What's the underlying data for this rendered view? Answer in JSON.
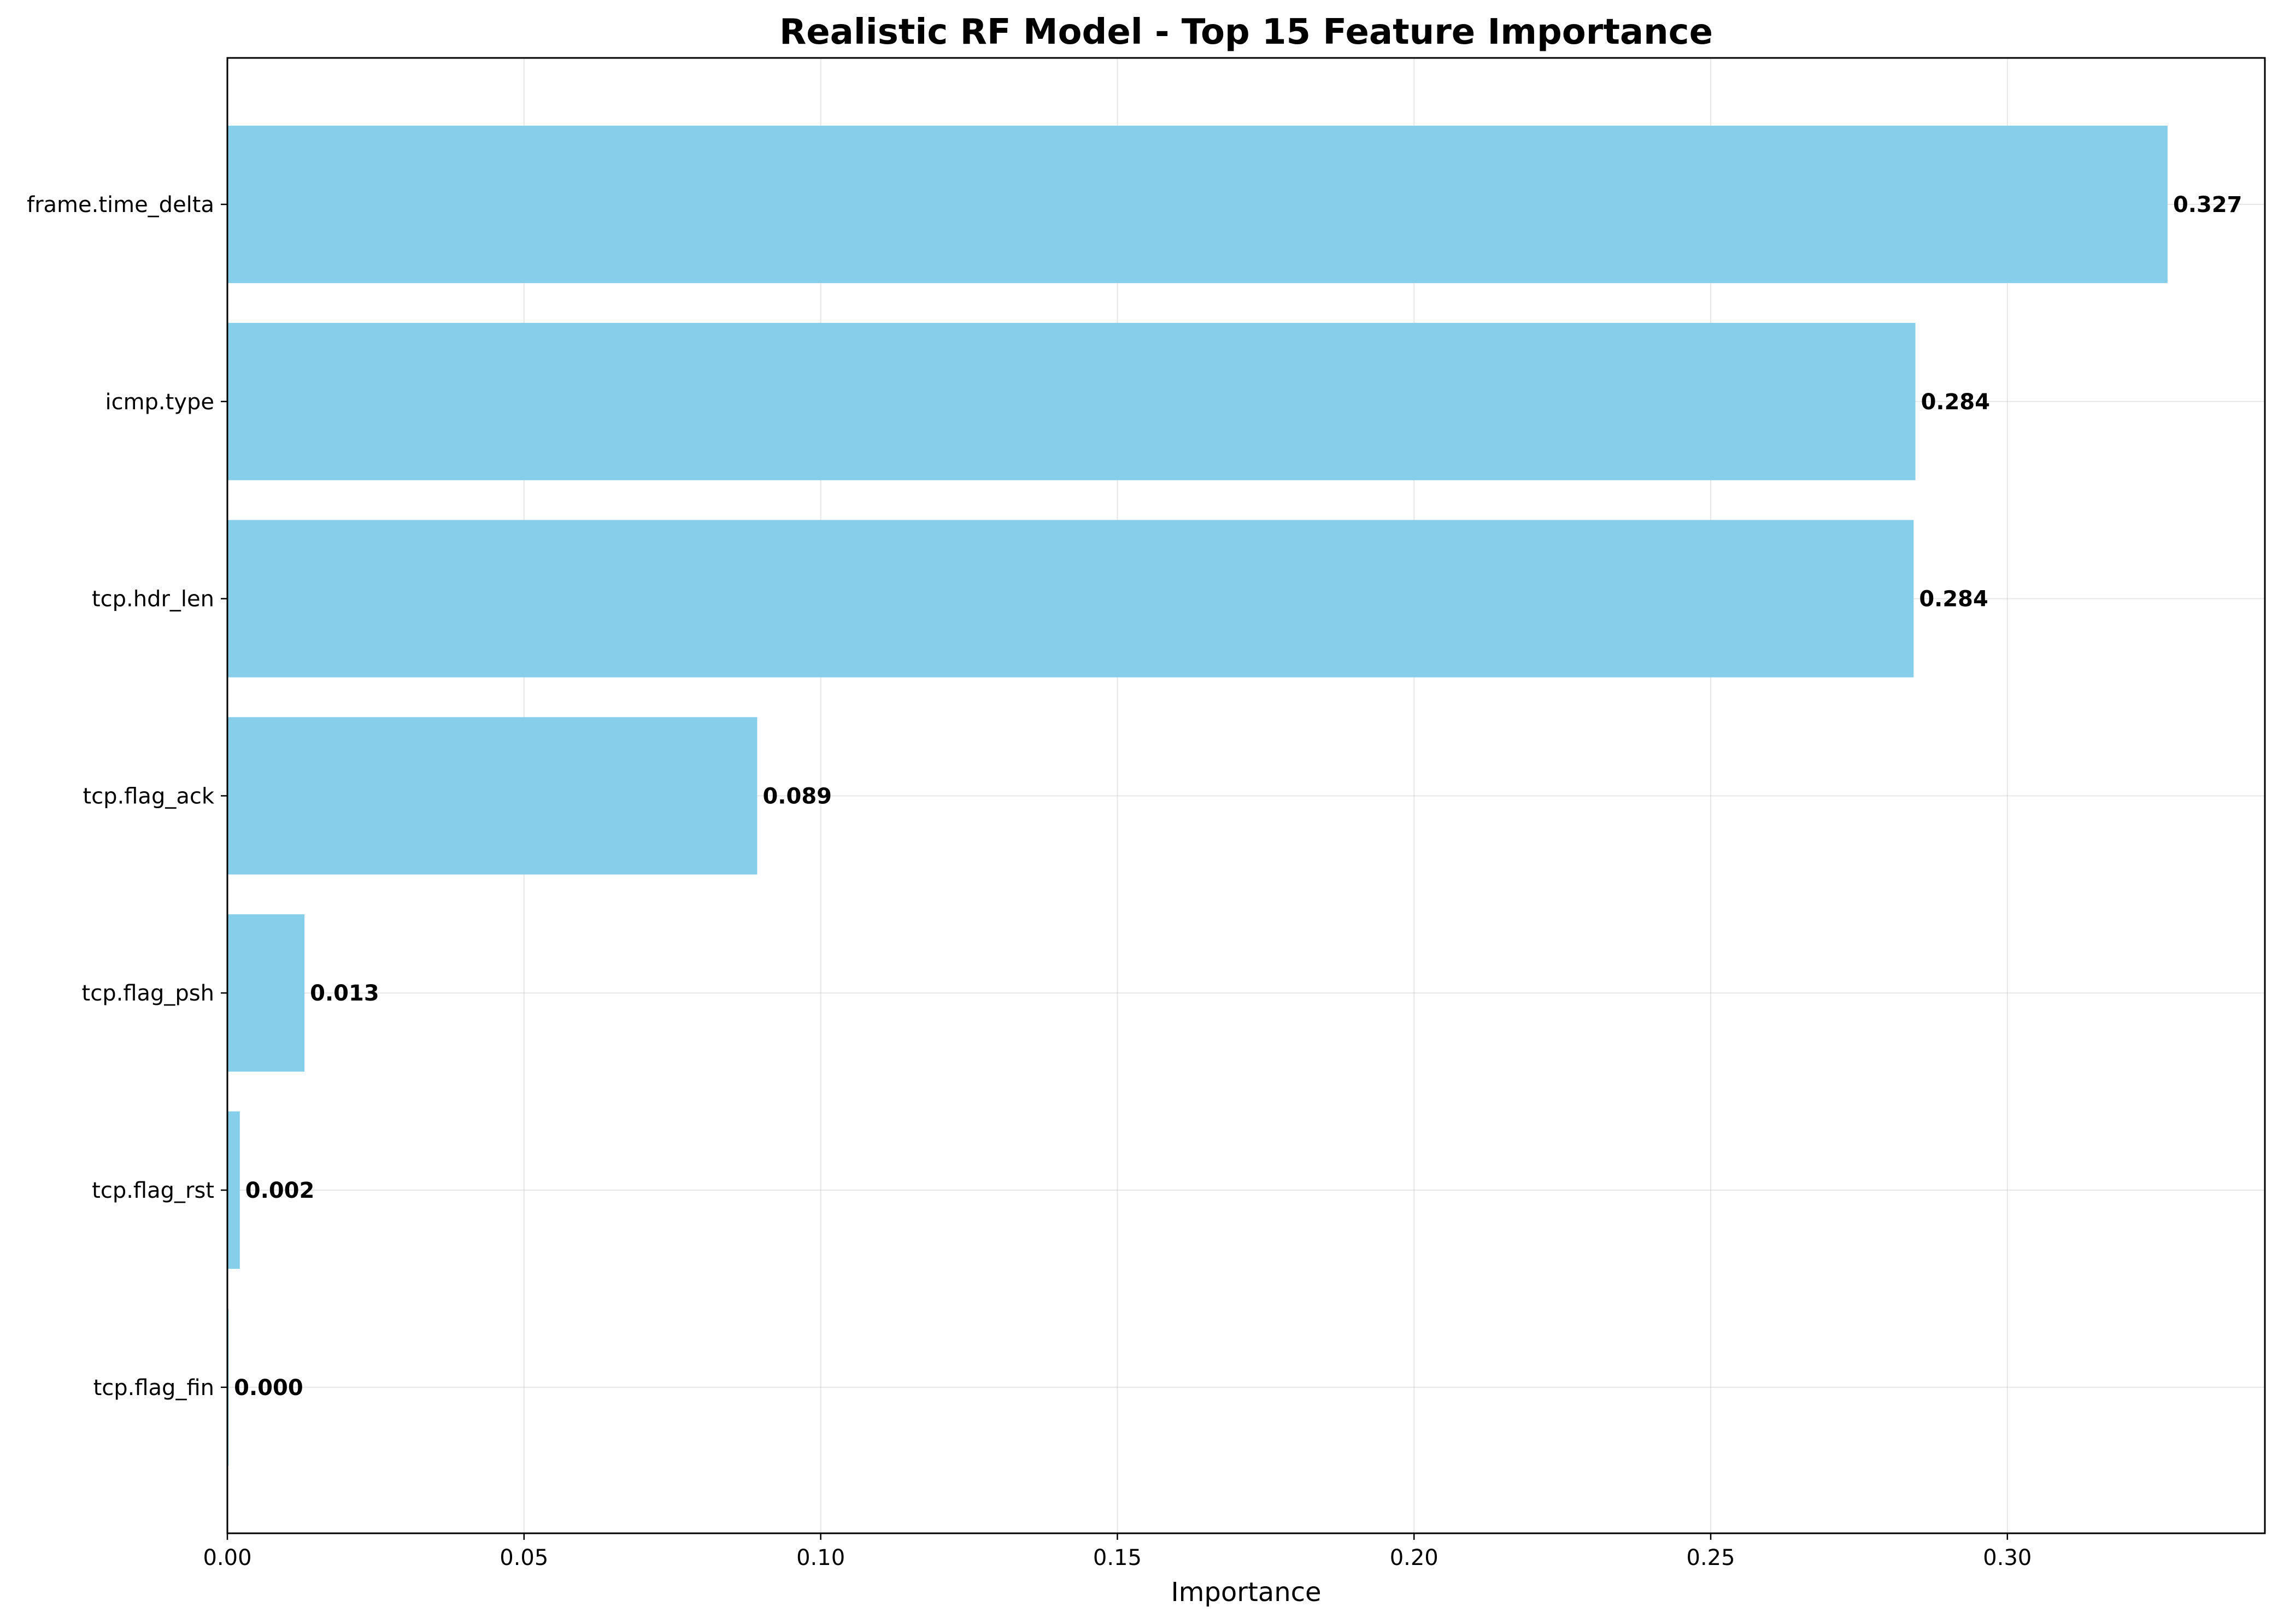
{
  "chart_data": {
    "type": "bar",
    "orientation": "horizontal",
    "title": "Realistic RF Model - Top 15 Feature Importance",
    "xlabel": "Importance",
    "ylabel": "",
    "categories": [
      "frame.time_delta",
      "icmp.type",
      "tcp.hdr_len",
      "tcp.flag_ack",
      "tcp.flag_psh",
      "tcp.flag_rst",
      "tcp.flag_fin"
    ],
    "values": [
      0.327,
      0.2845,
      0.2842,
      0.0893,
      0.013,
      0.0021,
      0.0002
    ],
    "value_labels": [
      "0.327",
      "0.284",
      "0.284",
      "0.089",
      "0.013",
      "0.002",
      "0.000"
    ],
    "xlim": [
      0,
      0.3434
    ],
    "xticks": [
      0.0,
      0.05,
      0.1,
      0.15,
      0.2,
      0.25,
      0.3
    ],
    "xtick_labels": [
      "0.00",
      "0.05",
      "0.10",
      "0.15",
      "0.20",
      "0.25",
      "0.30"
    ],
    "grid": true,
    "bar_color": "#87CEEB"
  }
}
